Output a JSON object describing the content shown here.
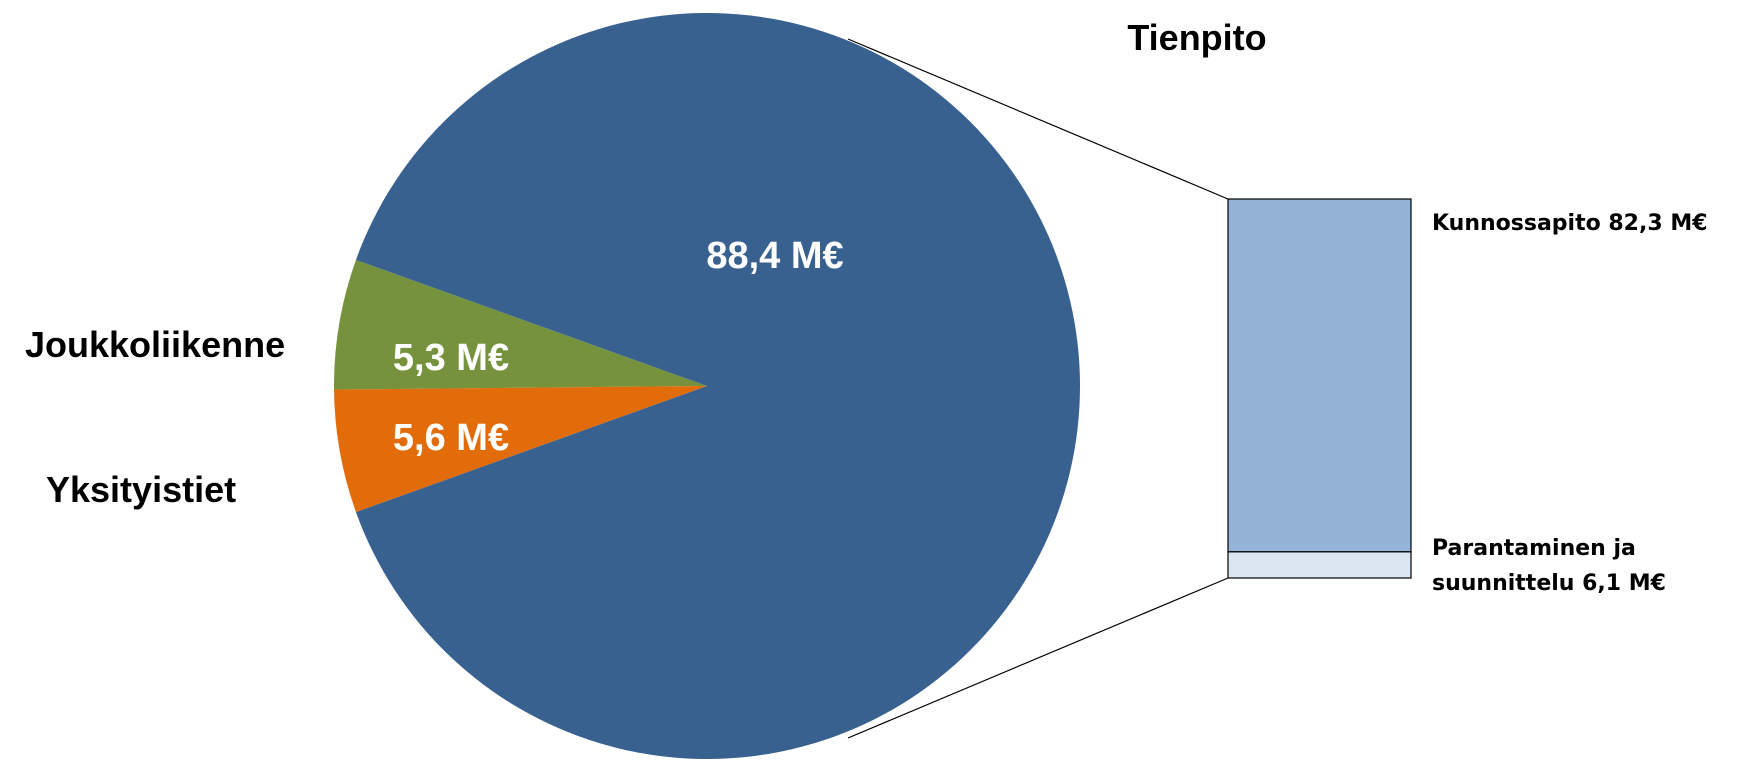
{
  "chart_data": {
    "type": "bar-of-pie",
    "unit": "M€",
    "pie": {
      "slices": [
        {
          "name": "Tienpito",
          "value": 88.4,
          "value_label": "88,4 M€",
          "color": "#386190"
        },
        {
          "name": "Joukkoliikenne",
          "value": 5.3,
          "value_label": "5,3 M€",
          "color": "#e36c0a"
        },
        {
          "name": "Yksityistiet",
          "value": 5.6,
          "value_label": "5,6 M€",
          "color": "#76923c"
        }
      ]
    },
    "breakdown": {
      "of": "Tienpito",
      "title": "Tienpito",
      "segments": [
        {
          "name": "Kunnossapito",
          "value": 82.3,
          "label": "Kunnossapito 82,3 M€",
          "color": "#95b3d7"
        },
        {
          "name": "Parantaminen ja suunnittelu",
          "value": 6.1,
          "label_lines": [
            "Parantaminen ja",
            "suunnittelu 6,1 M€"
          ],
          "color": "#dce6f2"
        }
      ]
    }
  }
}
